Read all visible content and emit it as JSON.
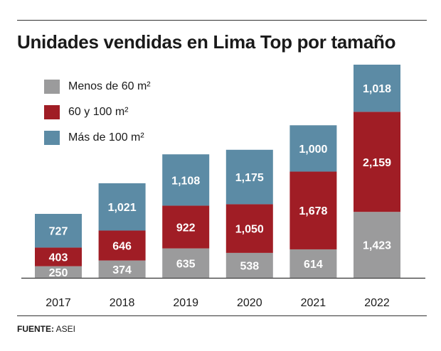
{
  "title": "Unidades vendidas en Lima Top por tamaño",
  "source": {
    "label": "FUENTE:",
    "value": "ASEI"
  },
  "colors": {
    "small": "#9b9b9c",
    "medium": "#a01d25",
    "large": "#5c8ba5",
    "axis": "#333333"
  },
  "chart_data": {
    "type": "bar",
    "stacked": true,
    "title": "Unidades vendidas en Lima Top por tamaño",
    "xlabel": "",
    "ylabel": "",
    "categories": [
      "2017",
      "2018",
      "2019",
      "2020",
      "2021",
      "2022"
    ],
    "series": [
      {
        "name": "Menos de 60 m²",
        "values": [
          250,
          374,
          635,
          538,
          614,
          1423
        ],
        "labels": [
          "250",
          "374",
          "635",
          "538",
          "614",
          "1,423"
        ]
      },
      {
        "name": "60 y 100 m²",
        "values": [
          403,
          646,
          922,
          1050,
          1678,
          2159
        ],
        "labels": [
          "403",
          "646",
          "922",
          "1,050",
          "1,678",
          "2,159"
        ]
      },
      {
        "name": "Más de 100 m²",
        "values": [
          727,
          1021,
          1108,
          1175,
          1000,
          1018
        ],
        "labels": [
          "727",
          "1,021",
          "1,108",
          "1,175",
          "1,000",
          "1,018"
        ]
      }
    ],
    "ylim": [
      0,
      4600
    ],
    "grid": false,
    "legend_position": "top-left"
  }
}
